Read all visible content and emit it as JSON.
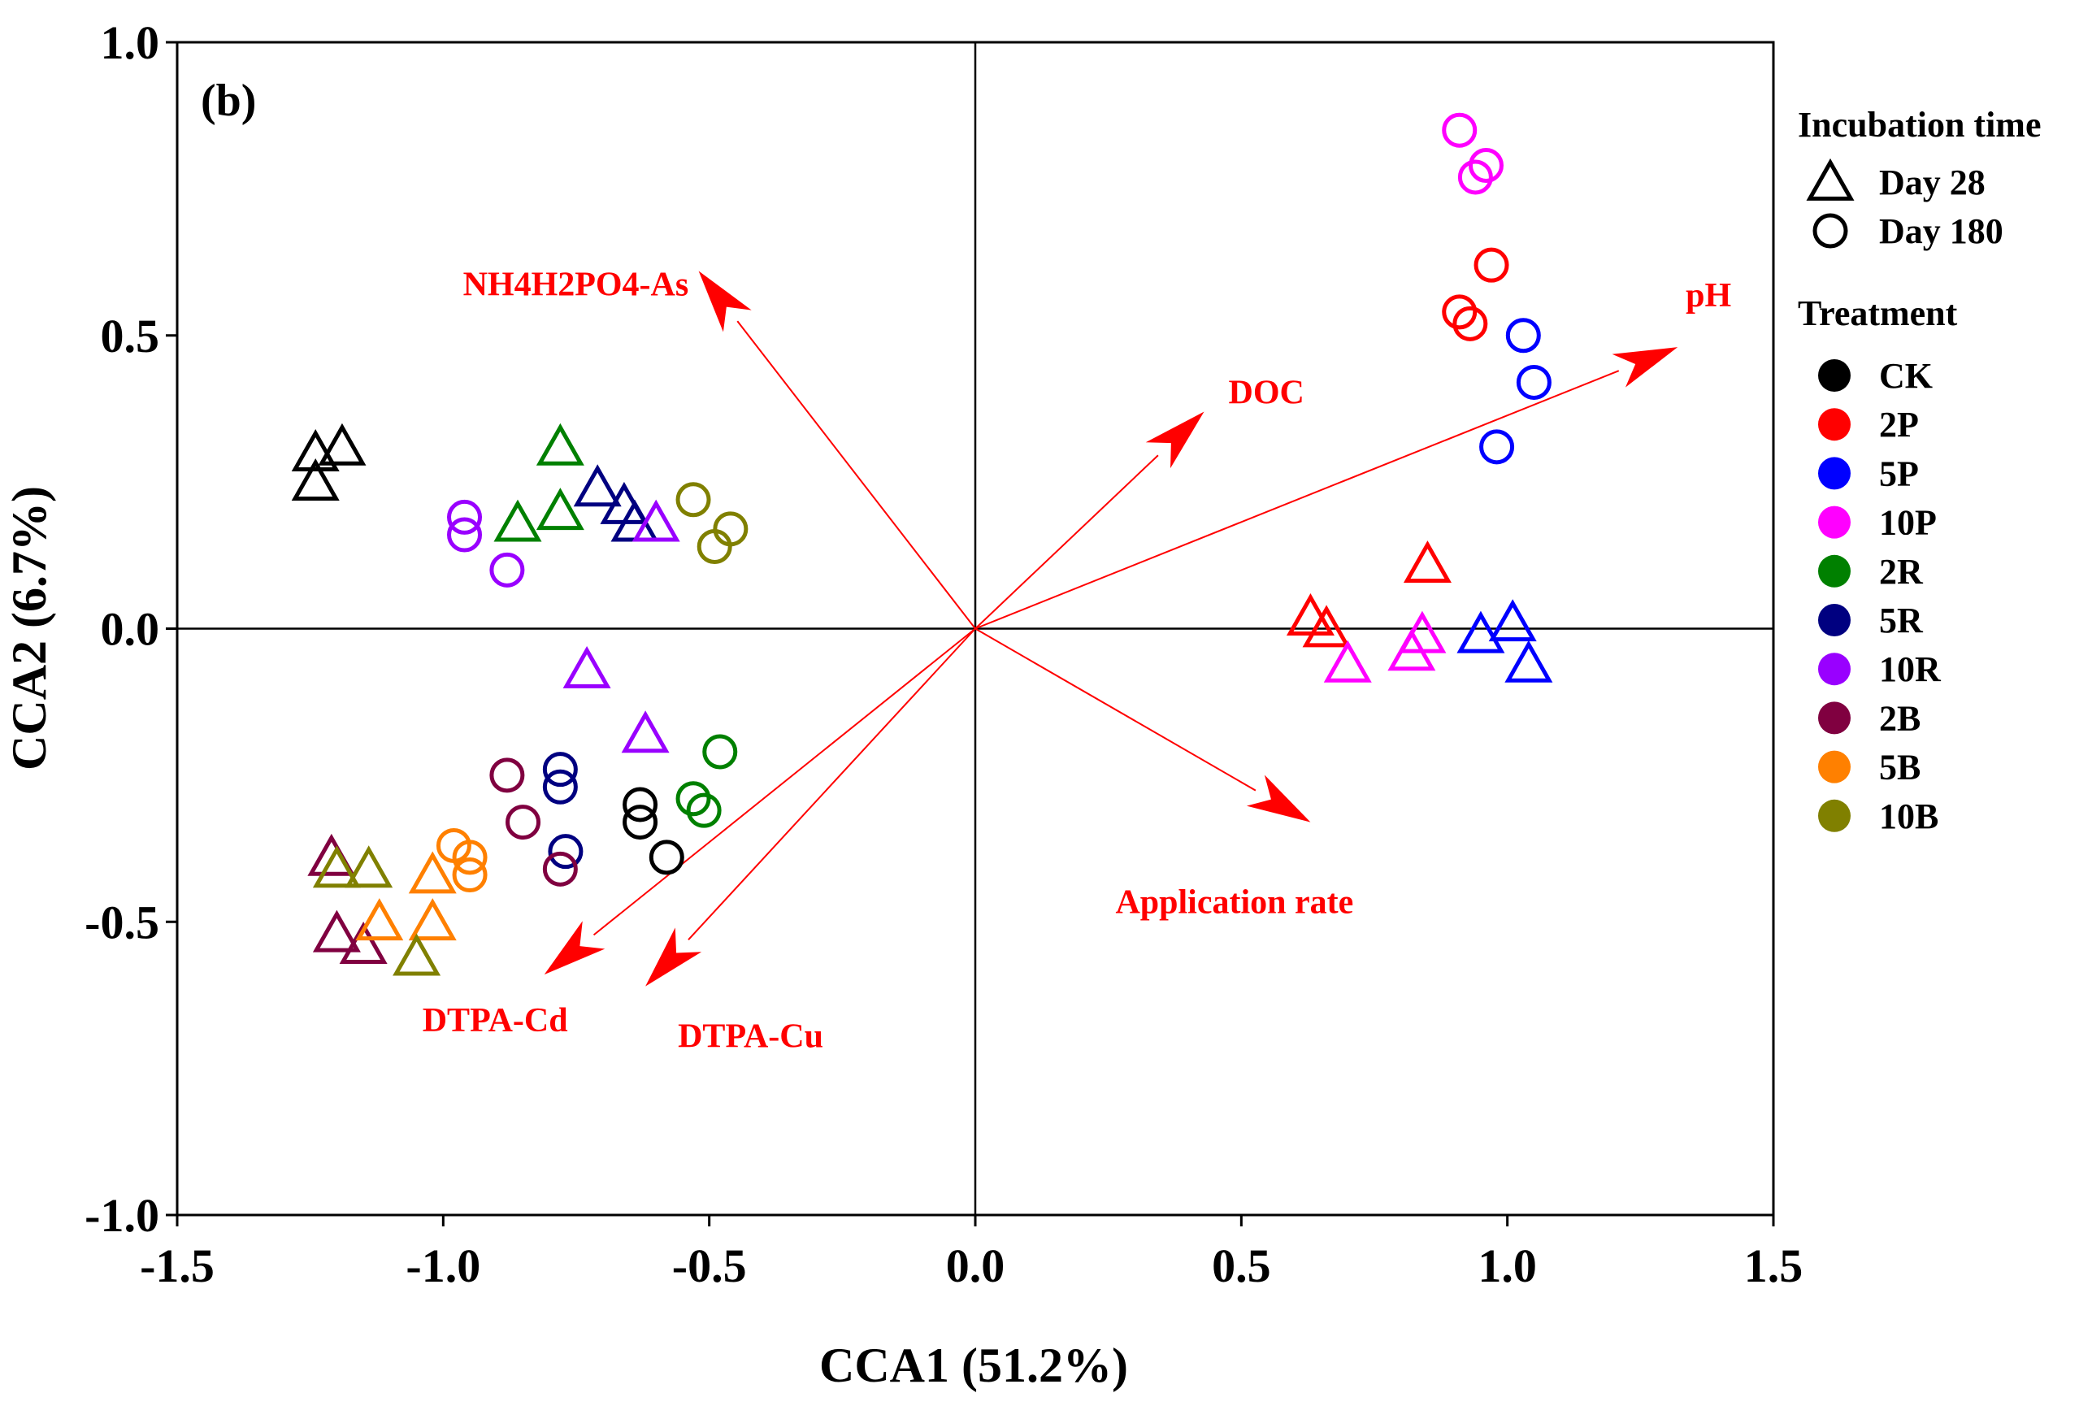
{
  "chart_data": {
    "type": "scatter",
    "panel_label": "(b)",
    "xlabel": "CCA1 (51.2%)",
    "ylabel": "CCA2 (6.7%)",
    "xlim": [
      -1.5,
      1.5
    ],
    "ylim": [
      -1.0,
      1.0
    ],
    "xticks": [
      "-1.5",
      "-1.0",
      "-0.5",
      "0.0",
      "0.5",
      "1.0",
      "1.5"
    ],
    "yticks": [
      "1.0",
      "0.5",
      "0.0",
      "-0.5",
      "-1.0"
    ],
    "arrow_color": "#ff0000",
    "legend": {
      "time_title": "Incubation time",
      "times": [
        {
          "key": "d28",
          "label": "Day 28",
          "marker": "triangle"
        },
        {
          "key": "d180",
          "label": "Day 180",
          "marker": "circle"
        }
      ],
      "treatment_title": "Treatment",
      "treatments": [
        {
          "name": "CK",
          "color": "#000000"
        },
        {
          "name": "2P",
          "color": "#ff0000"
        },
        {
          "name": "5P",
          "color": "#0000ff"
        },
        {
          "name": "10P",
          "color": "#ff00ff"
        },
        {
          "name": "2R",
          "color": "#008000"
        },
        {
          "name": "5R",
          "color": "#000080"
        },
        {
          "name": "10R",
          "color": "#9900ff"
        },
        {
          "name": "2B",
          "color": "#800040"
        },
        {
          "name": "5B",
          "color": "#ff8000"
        },
        {
          "name": "10B",
          "color": "#808000"
        }
      ]
    },
    "vectors": [
      {
        "label": "pH",
        "x": 1.32,
        "y": 0.48
      },
      {
        "label": "DOC",
        "x": 0.43,
        "y": 0.37
      },
      {
        "label": "NH4H2PO4-As",
        "x": -0.52,
        "y": 0.61
      },
      {
        "label": "Application rate",
        "x": 0.63,
        "y": -0.33
      },
      {
        "label": "DTPA-Cd",
        "x": -0.81,
        "y": -0.59
      },
      {
        "label": "DTPA-Cu",
        "x": -0.62,
        "y": -0.61
      }
    ],
    "series": [
      {
        "treatment": "CK",
        "time": "d28",
        "points": [
          [
            -1.24,
            0.3
          ],
          [
            -1.19,
            0.31
          ],
          [
            -1.24,
            0.25
          ]
        ]
      },
      {
        "treatment": "CK",
        "time": "d180",
        "points": [
          [
            -0.63,
            -0.3
          ],
          [
            -0.63,
            -0.33
          ],
          [
            -0.58,
            -0.39
          ]
        ]
      },
      {
        "treatment": "2P",
        "time": "d28",
        "points": [
          [
            0.85,
            0.11
          ],
          [
            0.63,
            0.02
          ],
          [
            0.66,
            0.0
          ]
        ]
      },
      {
        "treatment": "2P",
        "time": "d180",
        "points": [
          [
            0.97,
            0.62
          ],
          [
            0.91,
            0.54
          ],
          [
            0.93,
            0.52
          ]
        ]
      },
      {
        "treatment": "5P",
        "time": "d28",
        "points": [
          [
            1.01,
            0.01
          ],
          [
            0.95,
            -0.01
          ],
          [
            1.04,
            -0.06
          ]
        ]
      },
      {
        "treatment": "5P",
        "time": "d180",
        "points": [
          [
            1.03,
            0.5
          ],
          [
            1.05,
            0.42
          ],
          [
            0.98,
            0.31
          ]
        ]
      },
      {
        "treatment": "10P",
        "time": "d28",
        "points": [
          [
            0.84,
            -0.01
          ],
          [
            0.82,
            -0.04
          ],
          [
            0.7,
            -0.06
          ]
        ]
      },
      {
        "treatment": "10P",
        "time": "d180",
        "points": [
          [
            0.91,
            0.85
          ],
          [
            0.96,
            0.79
          ],
          [
            0.94,
            0.77
          ]
        ]
      },
      {
        "treatment": "2R",
        "time": "d28",
        "points": [
          [
            -0.78,
            0.31
          ],
          [
            -0.78,
            0.2
          ],
          [
            -0.86,
            0.18
          ]
        ]
      },
      {
        "treatment": "2R",
        "time": "d180",
        "points": [
          [
            -0.48,
            -0.21
          ],
          [
            -0.53,
            -0.29
          ],
          [
            -0.51,
            -0.31
          ]
        ]
      },
      {
        "treatment": "5R",
        "time": "d28",
        "points": [
          [
            -0.71,
            0.24
          ],
          [
            -0.66,
            0.21
          ],
          [
            -0.64,
            0.18
          ]
        ]
      },
      {
        "treatment": "5R",
        "time": "d180",
        "points": [
          [
            -0.78,
            -0.24
          ],
          [
            -0.78,
            -0.27
          ],
          [
            -0.77,
            -0.38
          ]
        ]
      },
      {
        "treatment": "10R",
        "time": "d28",
        "points": [
          [
            -0.6,
            0.18
          ],
          [
            -0.73,
            -0.07
          ],
          [
            -0.62,
            -0.18
          ]
        ]
      },
      {
        "treatment": "10R",
        "time": "d180",
        "points": [
          [
            -0.96,
            0.19
          ],
          [
            -0.96,
            0.16
          ],
          [
            -0.88,
            0.1
          ]
        ]
      },
      {
        "treatment": "2B",
        "time": "d28",
        "points": [
          [
            -1.21,
            -0.39
          ],
          [
            -1.2,
            -0.52
          ],
          [
            -1.15,
            -0.54
          ]
        ]
      },
      {
        "treatment": "2B",
        "time": "d180",
        "points": [
          [
            -0.88,
            -0.25
          ],
          [
            -0.85,
            -0.33
          ],
          [
            -0.78,
            -0.41
          ]
        ]
      },
      {
        "treatment": "5B",
        "time": "d28",
        "points": [
          [
            -1.02,
            -0.42
          ],
          [
            -1.02,
            -0.5
          ],
          [
            -1.12,
            -0.5
          ]
        ]
      },
      {
        "treatment": "5B",
        "time": "d180",
        "points": [
          [
            -0.98,
            -0.37
          ],
          [
            -0.95,
            -0.39
          ],
          [
            -0.95,
            -0.42
          ]
        ]
      },
      {
        "treatment": "10B",
        "time": "d28",
        "points": [
          [
            -1.2,
            -0.41
          ],
          [
            -1.14,
            -0.41
          ],
          [
            -1.05,
            -0.56
          ]
        ]
      },
      {
        "treatment": "10B",
        "time": "d180",
        "points": [
          [
            -0.53,
            0.22
          ],
          [
            -0.46,
            0.17
          ],
          [
            -0.49,
            0.14
          ]
        ]
      }
    ]
  }
}
